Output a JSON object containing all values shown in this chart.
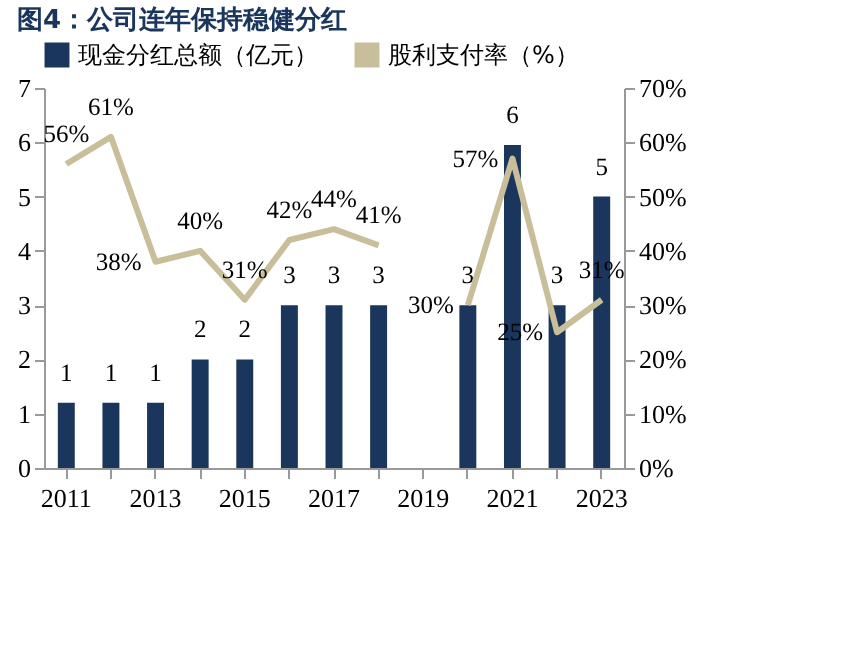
{
  "chart_data": {
    "type": "bar",
    "title": "图4：公司连年保持稳健分红",
    "categories": [
      "2011",
      null,
      "2013",
      null,
      "2015",
      null,
      "2017",
      null,
      "2019",
      null,
      "2021",
      null,
      "2023"
    ],
    "series": [
      {
        "name": "现金分红总额（亿元）",
        "color": "#1b365d",
        "values": [
          1.2,
          1.2,
          1.2,
          2.0,
          2.0,
          3.0,
          3.0,
          3.0,
          null,
          3.0,
          5.95,
          3.0,
          5.0
        ],
        "value_labels": [
          "1",
          "1",
          "1",
          "2",
          "2",
          "3",
          "3",
          "3",
          null,
          "3",
          "6",
          "3",
          "5"
        ]
      },
      {
        "name": "股利支付率（%）",
        "type": "line",
        "axis": "y2",
        "color": "#c8bf9a",
        "values": [
          56,
          61,
          38,
          40,
          31,
          42,
          44,
          41,
          null,
          30,
          57,
          25,
          31
        ],
        "value_labels": [
          "56%",
          "61%",
          "38%",
          "40%",
          "31%",
          "42%",
          "44%",
          "41%",
          null,
          "30%",
          "57%",
          "25%",
          "31%"
        ]
      }
    ],
    "ylim": [
      0,
      7
    ],
    "yticks": [
      0,
      1,
      2,
      3,
      4,
      5,
      6,
      7
    ],
    "y2lim": [
      0,
      70
    ],
    "y2ticks": [
      {
        "value": 0,
        "label": "0%"
      },
      {
        "value": 10,
        "label": "10%"
      },
      {
        "value": 20,
        "label": "20%"
      },
      {
        "value": 30,
        "label": "30%"
      },
      {
        "value": 40,
        "label": "40%"
      },
      {
        "value": 50,
        "label": "50%"
      },
      {
        "value": 60,
        "label": "60%"
      },
      {
        "value": 70,
        "label": "70%"
      }
    ],
    "legend": "top",
    "grid": false
  }
}
